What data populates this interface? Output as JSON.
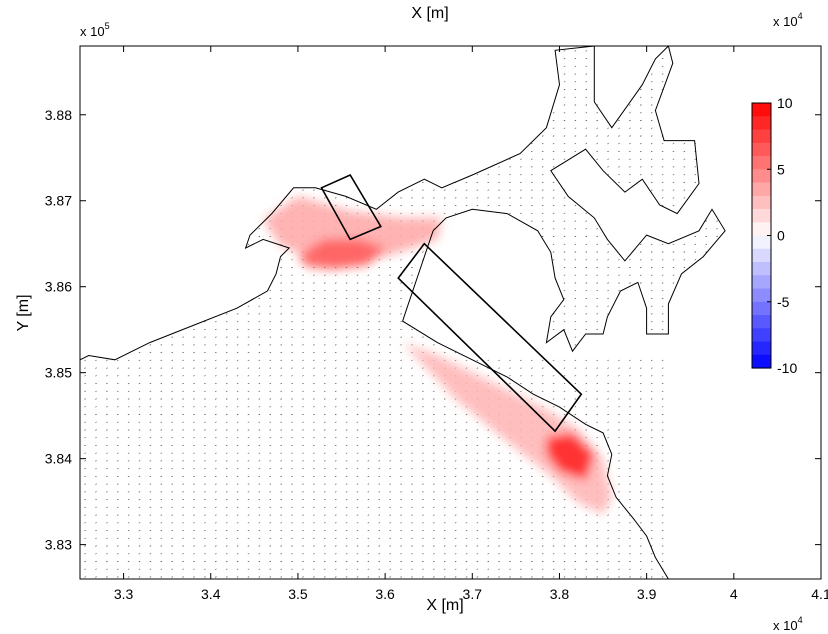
{
  "chart_data": {
    "type": "heatmap",
    "title": "",
    "top_label": "X [m]",
    "xlabel": "X [m]",
    "ylabel": "Y [m]",
    "x_multiplier": {
      "base": "x 10",
      "exp": "4"
    },
    "x_multiplier_top": {
      "base": "x 10",
      "exp": "4"
    },
    "y_multiplier": {
      "base": "x 10",
      "exp": "5"
    },
    "xlim": [
      3.25,
      4.1
    ],
    "ylim": [
      3.826,
      3.888
    ],
    "xticks": [
      3.3,
      3.4,
      3.5,
      3.6,
      3.7,
      3.8,
      3.9,
      4,
      4.1
    ],
    "xtick_labels": [
      "3.3",
      "3.4",
      "3.5",
      "3.6",
      "3.7",
      "3.8",
      "3.9",
      "4",
      "4.1"
    ],
    "yticks": [
      3.83,
      3.84,
      3.85,
      3.86,
      3.87,
      3.88
    ],
    "ytick_labels": [
      "3.83",
      "3.84",
      "3.85",
      "3.86",
      "3.87",
      "3.88"
    ],
    "grid": false,
    "colorbar": {
      "min": -10,
      "max": 10,
      "ticks": [
        10,
        5,
        0,
        -5,
        -10
      ],
      "tick_labels": [
        "10",
        "5",
        "0",
        "-5",
        "-10"
      ],
      "color_max": "#ff0000",
      "color_mid": "#ffffff",
      "color_min": "#0000ff",
      "levels": 20
    },
    "coastline": [
      [
        3.25,
        3.8515
      ],
      [
        3.26,
        3.852
      ],
      [
        3.29,
        3.8515
      ],
      [
        3.33,
        3.8535
      ],
      [
        3.38,
        3.8555
      ],
      [
        3.43,
        3.8575
      ],
      [
        3.465,
        3.8595
      ],
      [
        3.475,
        3.8615
      ],
      [
        3.48,
        3.8635
      ],
      [
        3.49,
        3.8645
      ],
      [
        3.46,
        3.8655
      ],
      [
        3.44,
        3.8645
      ],
      [
        3.445,
        3.866
      ],
      [
        3.47,
        3.8685
      ],
      [
        3.495,
        3.8715
      ],
      [
        3.52,
        3.8715
      ],
      [
        3.555,
        3.8705
      ],
      [
        3.59,
        3.869
      ],
      [
        3.615,
        3.871
      ],
      [
        3.645,
        3.8725
      ],
      [
        3.665,
        3.8715
      ],
      [
        3.7,
        3.873
      ],
      [
        3.755,
        3.8755
      ],
      [
        3.785,
        3.8785
      ],
      [
        3.8,
        3.8835
      ],
      [
        3.795,
        3.8875
      ],
      [
        3.84,
        3.888
      ],
      [
        3.84,
        3.8815
      ],
      [
        3.86,
        3.8785
      ],
      [
        3.895,
        3.8835
      ],
      [
        3.91,
        3.8865
      ],
      [
        3.925,
        3.888
      ],
      [
        3.93,
        3.886
      ],
      [
        3.91,
        3.8805
      ],
      [
        3.92,
        3.877
      ],
      [
        3.955,
        3.877
      ],
      [
        3.96,
        3.872
      ],
      [
        3.935,
        3.8685
      ],
      [
        3.915,
        3.8695
      ],
      [
        3.895,
        3.8725
      ],
      [
        3.875,
        3.871
      ],
      [
        3.85,
        3.8735
      ],
      [
        3.83,
        3.876
      ],
      [
        3.79,
        3.8735
      ],
      [
        3.81,
        3.8705
      ],
      [
        3.84,
        3.868
      ],
      [
        3.855,
        3.8655
      ],
      [
        3.875,
        3.863
      ],
      [
        3.9,
        3.866
      ],
      [
        3.925,
        3.865
      ],
      [
        3.96,
        3.8665
      ],
      [
        3.975,
        3.869
      ],
      [
        3.99,
        3.8665
      ],
      [
        3.965,
        3.8635
      ],
      [
        3.94,
        3.8615
      ],
      [
        3.925,
        3.858
      ],
      [
        3.925,
        3.8545
      ],
      [
        3.9,
        3.8545
      ],
      [
        3.9,
        3.8575
      ],
      [
        3.89,
        3.8605
      ],
      [
        3.87,
        3.8595
      ],
      [
        3.855,
        3.8565
      ],
      [
        3.85,
        3.8545
      ],
      [
        3.83,
        3.8545
      ],
      [
        3.815,
        3.8525
      ],
      [
        3.805,
        3.855
      ],
      [
        3.785,
        3.8535
      ],
      [
        3.79,
        3.8565
      ],
      [
        3.805,
        3.8585
      ],
      [
        3.795,
        3.861
      ],
      [
        3.79,
        3.864
      ],
      [
        3.775,
        3.8665
      ],
      [
        3.74,
        3.8685
      ],
      [
        3.7,
        3.869
      ],
      [
        3.67,
        3.868
      ],
      [
        3.655,
        3.8665
      ],
      [
        3.64,
        3.862
      ],
      [
        3.625,
        3.8575
      ],
      [
        3.62,
        3.856
      ],
      [
        3.66,
        3.8535
      ],
      [
        3.7,
        3.8515
      ],
      [
        3.74,
        3.8495
      ],
      [
        3.77,
        3.8475
      ],
      [
        3.8,
        3.846
      ],
      [
        3.83,
        3.844
      ],
      [
        3.85,
        3.843
      ],
      [
        3.86,
        3.8405
      ],
      [
        3.855,
        3.838
      ],
      [
        3.865,
        3.8355
      ],
      [
        3.885,
        3.833
      ],
      [
        3.9,
        3.831
      ],
      [
        3.91,
        3.8285
      ],
      [
        3.925,
        3.826
      ]
    ],
    "annotations": [
      {
        "name": "north-rectangle",
        "points": [
          [
            3.527,
            3.8715
          ],
          [
            3.56,
            3.873
          ],
          [
            3.595,
            3.867
          ],
          [
            3.56,
            3.8655
          ]
        ]
      },
      {
        "name": "long-breakwater-rectangle",
        "points": [
          [
            3.615,
            3.861
          ],
          [
            3.645,
            3.865
          ],
          [
            3.825,
            3.8475
          ],
          [
            3.795,
            3.8432
          ]
        ]
      }
    ],
    "anomaly_regions": [
      {
        "name": "north-plume",
        "intensity": 0.35,
        "points": [
          [
            3.46,
            3.8678
          ],
          [
            3.5,
            3.8705
          ],
          [
            3.56,
            3.8688
          ],
          [
            3.62,
            3.868
          ],
          [
            3.665,
            3.868
          ],
          [
            3.66,
            3.8655
          ],
          [
            3.6,
            3.8635
          ],
          [
            3.55,
            3.8625
          ],
          [
            3.52,
            3.8632
          ],
          [
            3.48,
            3.8648
          ]
        ]
      },
      {
        "name": "north-core",
        "intensity": 0.65,
        "points": [
          [
            3.5,
            3.8635
          ],
          [
            3.53,
            3.8655
          ],
          [
            3.57,
            3.8655
          ],
          [
            3.6,
            3.8645
          ],
          [
            3.58,
            3.8625
          ],
          [
            3.54,
            3.862
          ],
          [
            3.51,
            3.8623
          ]
        ]
      },
      {
        "name": "south-plume",
        "intensity": 0.3,
        "points": [
          [
            3.62,
            3.8535
          ],
          [
            3.66,
            3.852
          ],
          [
            3.72,
            3.849
          ],
          [
            3.78,
            3.846
          ],
          [
            3.82,
            3.8435
          ],
          [
            3.85,
            3.84
          ],
          [
            3.86,
            3.8355
          ],
          [
            3.85,
            3.8335
          ],
          [
            3.82,
            3.835
          ],
          [
            3.79,
            3.838
          ],
          [
            3.74,
            3.842
          ],
          [
            3.68,
            3.847
          ]
        ]
      },
      {
        "name": "south-core",
        "intensity": 0.9,
        "points": [
          [
            3.785,
            3.8425
          ],
          [
            3.815,
            3.843
          ],
          [
            3.84,
            3.8405
          ],
          [
            3.83,
            3.8375
          ],
          [
            3.8,
            3.8385
          ],
          [
            3.785,
            3.8405
          ]
        ]
      }
    ]
  }
}
